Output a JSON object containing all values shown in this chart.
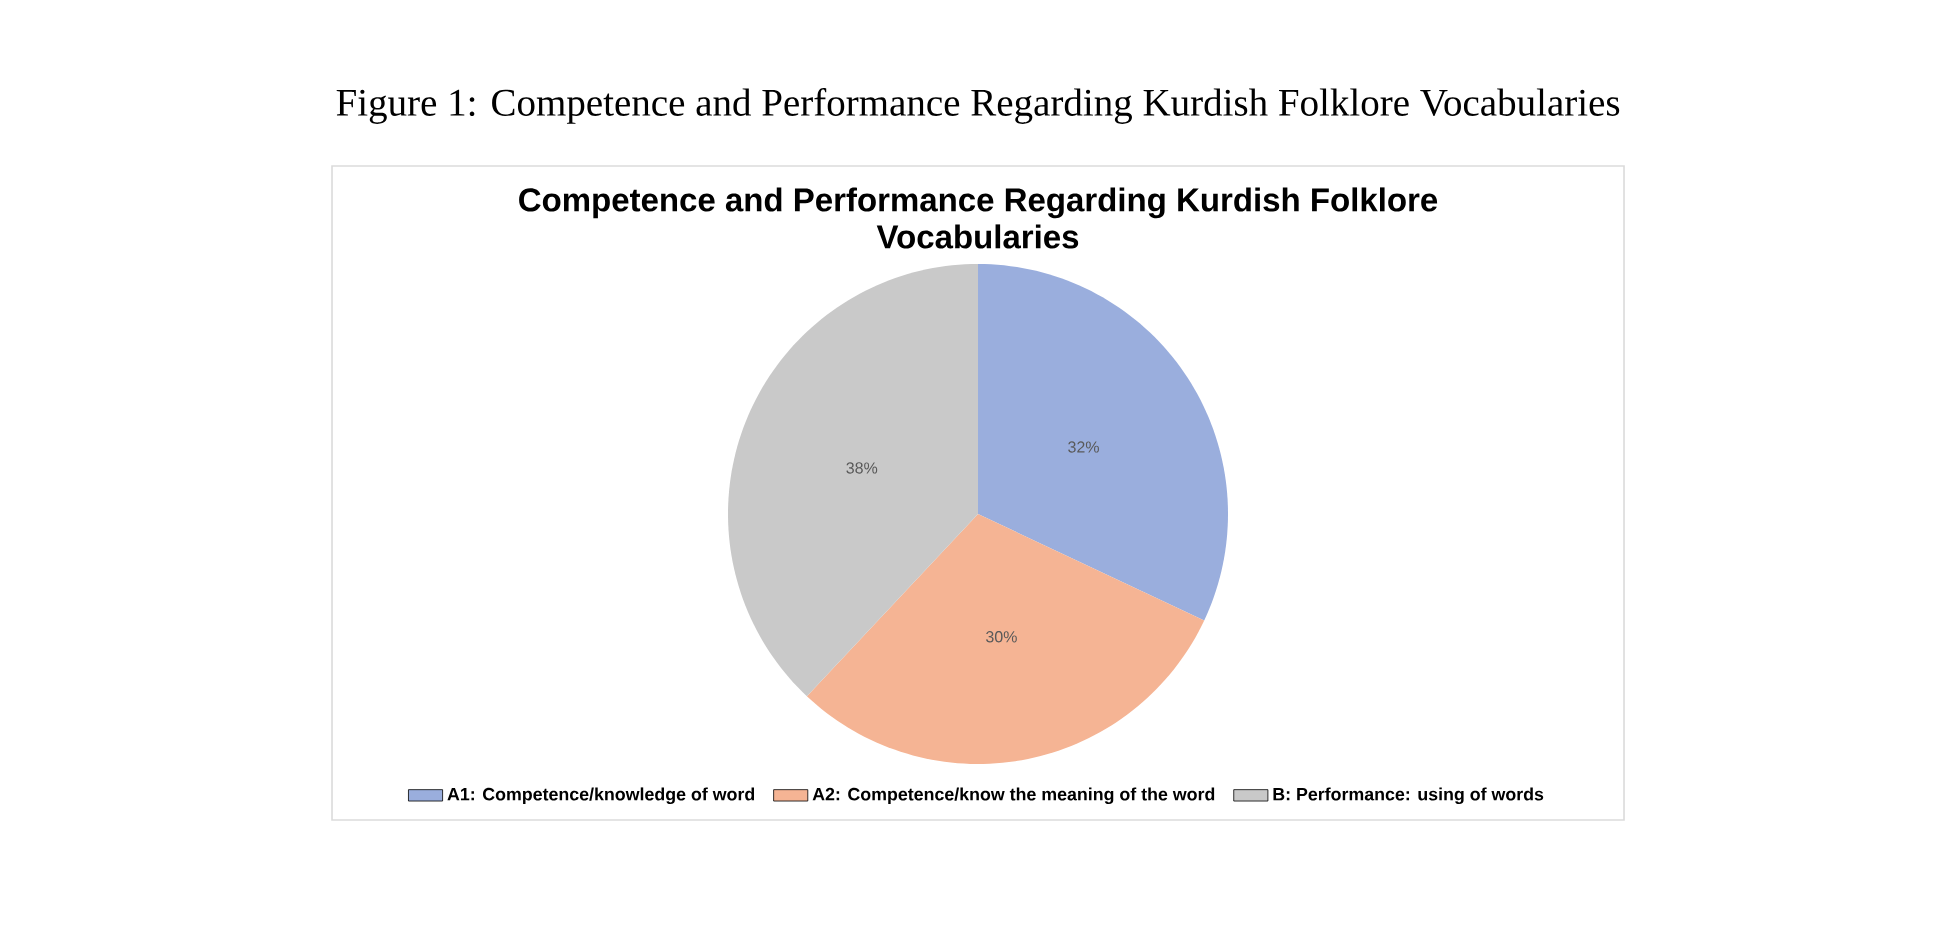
{
  "chart_data": {
    "type": "pie",
    "title": "Competence and Performance Regarding Kurdish Folklore Vocabularies",
    "categories": [
      "A1: Competence/knowledge of word",
      "A2: Competence/know the meaning of the word",
      "B: Performance: using of words"
    ],
    "values": [
      32,
      30,
      38
    ],
    "value_labels": [
      "32%",
      "30%",
      "38%"
    ],
    "colors": [
      "#9aaedd",
      "#f5b494",
      "#c9c9c9"
    ],
    "legend": "bottom",
    "annotations": [
      "Figure 1: Competence and Performance Regarding Kurdish Folklore Vocabularies"
    ]
  }
}
